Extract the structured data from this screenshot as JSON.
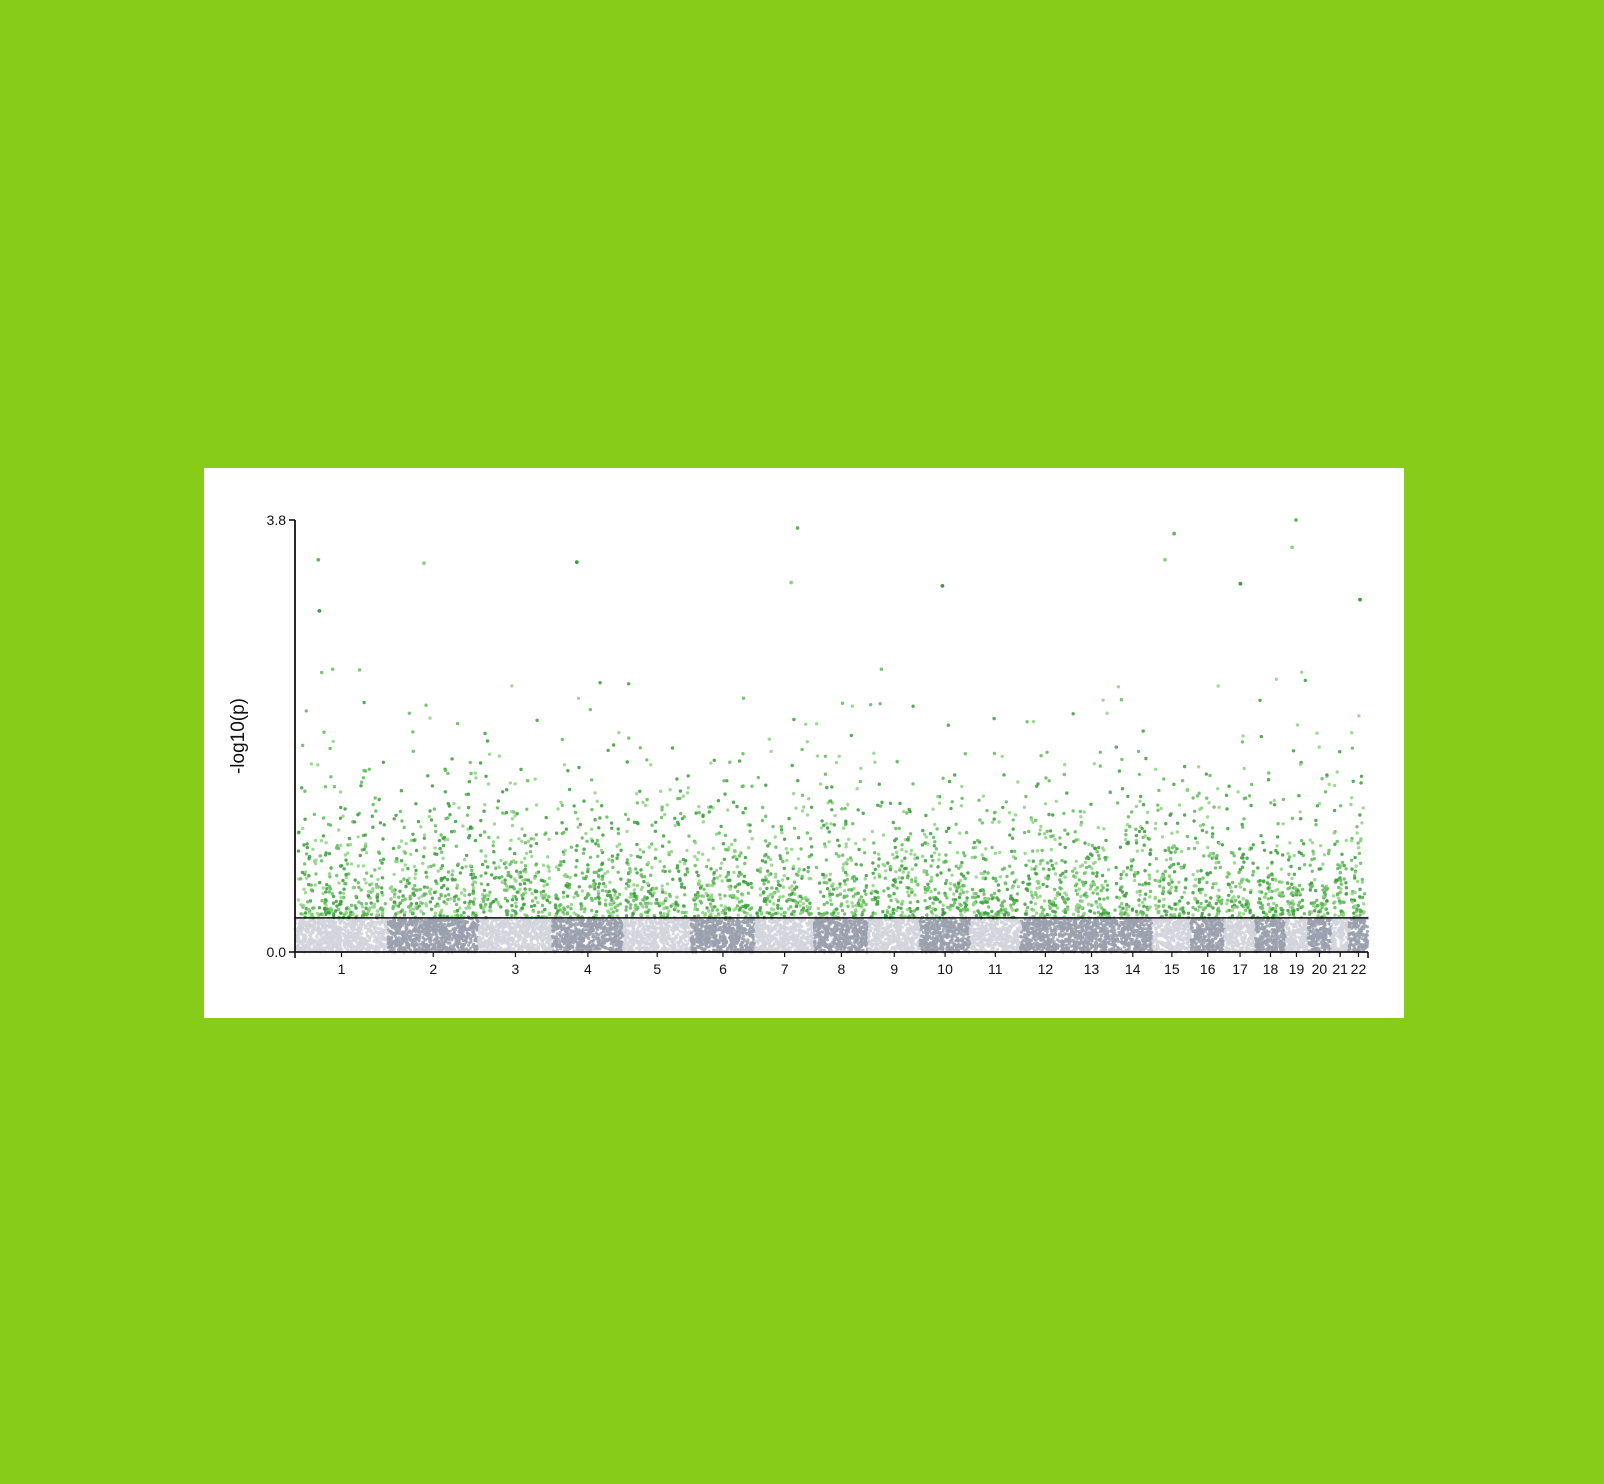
{
  "page": {
    "background": "#87cc18",
    "card_background": "#ffffff"
  },
  "chart_data": {
    "type": "scatter",
    "subtype": "manhattan",
    "title": "",
    "xlabel": "",
    "ylabel": "-log10(p)",
    "ylim": [
      0.0,
      3.8
    ],
    "y_ticks": [
      "0.0",
      "3.8"
    ],
    "threshold": 0.3,
    "grid": false,
    "legend": "none",
    "colors": {
      "significant": [
        "#3a9e3a",
        "#62ba5a",
        "#8ed383"
      ],
      "non_significant": [
        "#9aa0ad",
        "#d2d5dd"
      ],
      "threshold_line": "#111111",
      "axis": "#111111"
    },
    "x_axis": {
      "categories": [
        "1",
        "2",
        "3",
        "4",
        "5",
        "6",
        "7",
        "8",
        "9",
        "10",
        "11",
        "12",
        "13",
        "14",
        "15",
        "16",
        "17",
        "18",
        "19",
        "20",
        "21",
        "22"
      ],
      "relative_lengths": [
        249,
        242,
        198,
        190,
        181,
        171,
        159,
        145,
        138,
        134,
        135,
        133,
        114,
        107,
        102,
        90,
        83,
        80,
        59,
        64,
        47,
        51
      ],
      "band_colors": [
        "#d2d5dd",
        "#9aa0ad",
        "#d2d5dd",
        "#9aa0ad",
        "#d2d5dd",
        "#9aa0ad",
        "#d2d5dd",
        "#9aa0ad",
        "#d2d5dd",
        "#9aa0ad",
        "#d2d5dd",
        "#9aa0ad",
        "#9aa0ad",
        "#9aa0ad",
        "#d2d5dd",
        "#9aa0ad",
        "#d2d5dd",
        "#9aa0ad",
        "#d2d5dd",
        "#9aa0ad",
        "#d2d5dd",
        "#9aa0ad"
      ]
    },
    "top_hits": [
      {
        "chromosome": "1",
        "value": 3.0
      },
      {
        "chromosome": "1",
        "value": 3.45
      },
      {
        "chromosome": "2",
        "value": 3.42
      },
      {
        "chromosome": "4",
        "value": 3.43
      },
      {
        "chromosome": "7",
        "value": 3.73
      },
      {
        "chromosome": "7",
        "value": 3.25
      },
      {
        "chromosome": "10",
        "value": 3.22
      },
      {
        "chromosome": "15",
        "value": 3.68
      },
      {
        "chromosome": "15",
        "value": 3.45
      },
      {
        "chromosome": "17",
        "value": 3.24
      },
      {
        "chromosome": "19",
        "value": 3.8
      },
      {
        "chromosome": "19",
        "value": 3.56
      },
      {
        "chromosome": "22",
        "value": 3.1
      }
    ]
  }
}
